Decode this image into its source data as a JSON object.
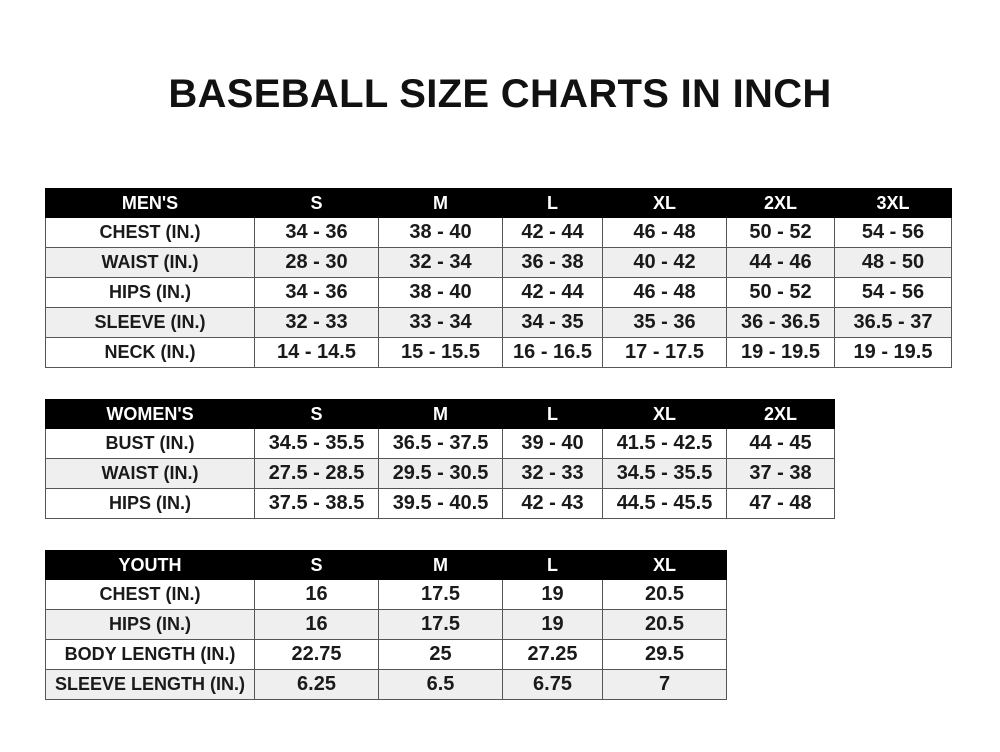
{
  "title": "BASEBALL SIZE CHARTS IN INCH",
  "tables": [
    {
      "id": "mens",
      "headers": [
        "MEN'S",
        "S",
        "M",
        "L",
        "XL",
        "2XL",
        "3XL"
      ],
      "rows": [
        [
          "CHEST (IN.)",
          "34 - 36",
          "38 - 40",
          "42 - 44",
          "46 - 48",
          "50 - 52",
          "54 - 56"
        ],
        [
          "WAIST (IN.)",
          "28 - 30",
          "32 - 34",
          "36 - 38",
          "40 - 42",
          "44 - 46",
          "48 - 50"
        ],
        [
          "HIPS (IN.)",
          "34 - 36",
          "38 - 40",
          "42 - 44",
          "46 - 48",
          "50 - 52",
          "54 - 56"
        ],
        [
          "SLEEVE (IN.)",
          "32 - 33",
          "33 - 34",
          "34 - 35",
          "35 - 36",
          "36 - 36.5",
          "36.5 - 37"
        ],
        [
          "NECK (IN.)",
          "14 - 14.5",
          "15 - 15.5",
          "16 - 16.5",
          "17 - 17.5",
          "19 - 19.5",
          "19 - 19.5"
        ]
      ]
    },
    {
      "id": "womens",
      "headers": [
        "WOMEN'S",
        "S",
        "M",
        "L",
        "XL",
        "2XL"
      ],
      "rows": [
        [
          "BUST (IN.)",
          "34.5 - 35.5",
          "36.5 - 37.5",
          "39 - 40",
          "41.5 - 42.5",
          "44 - 45"
        ],
        [
          "WAIST (IN.)",
          "27.5 - 28.5",
          "29.5 - 30.5",
          "32 - 33",
          "34.5 - 35.5",
          "37 - 38"
        ],
        [
          "HIPS (IN.)",
          "37.5 - 38.5",
          "39.5 - 40.5",
          "42 - 43",
          "44.5 - 45.5",
          "47 - 48"
        ]
      ]
    },
    {
      "id": "youth",
      "headers": [
        "YOUTH",
        "S",
        "M",
        "L",
        "XL"
      ],
      "rows": [
        [
          "CHEST (IN.)",
          "16",
          "17.5",
          "19",
          "20.5"
        ],
        [
          "HIPS (IN.)",
          "16",
          "17.5",
          "19",
          "20.5"
        ],
        [
          "BODY LENGTH (IN.)",
          "22.75",
          "25",
          "27.25",
          "29.5"
        ],
        [
          "SLEEVE LENGTH (IN.)",
          "6.25",
          "6.5",
          "6.75",
          "7"
        ]
      ]
    }
  ]
}
